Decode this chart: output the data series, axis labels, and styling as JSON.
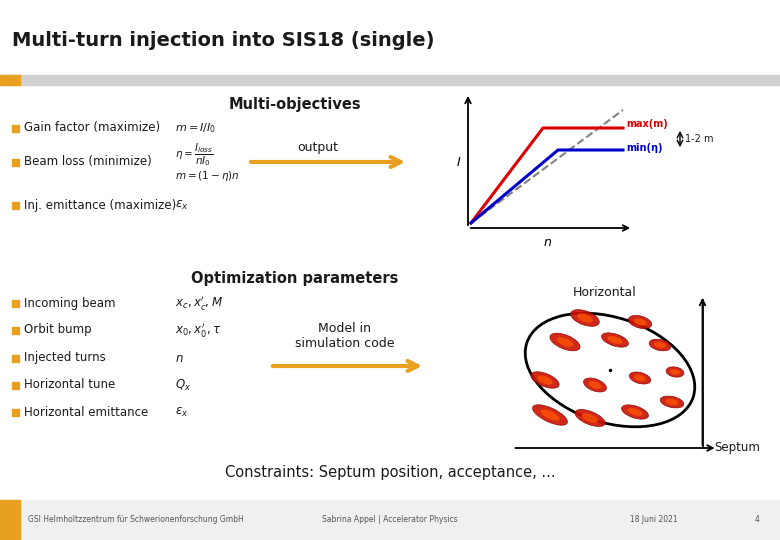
{
  "title": "Multi-turn injection into SIS18 (single)",
  "bg_color": "#ffffff",
  "gray_band_color": "#d0d0d0",
  "orange_accent_color": "#e8a020",
  "title_color": "#1a1a1a",
  "title_fontsize": 14,
  "section1_title": "Multi-objectives",
  "section2_title": "Optimization parameters",
  "constraints_text": "Constraints: Septum position, acceptance, ...",
  "bullet_color": "#e8a020",
  "bullet_items_top": [
    "Gain factor (maximize)",
    "Beam loss (minimize)",
    "Inj. emittance (maximize)"
  ],
  "bullet_items_bottom": [
    "Incoming beam",
    "Orbit bump",
    "Injected turns",
    "Horizontal tune",
    "Horizontal emittance"
  ],
  "output_label": "output",
  "model_label": "Model in\nsimulation code",
  "footer_left": "GSI Helmholtzzentrum für Schwerionenforschung GmbH",
  "footer_center": "Sabrina Appel | Accelerator Physics",
  "footer_right": "18 Juni 2021",
  "footer_page": "4",
  "footer_color": "#555555",
  "graph_label_max": "max(m)",
  "graph_label_min": "min(η)",
  "graph_range_label": "1-2 m",
  "graph_x_label": "n",
  "graph_y_label": "I",
  "horizontal_label": "Horizontal",
  "septum_label": "Septum",
  "red_line_color": "#dd0000",
  "blue_line_color": "#0000cc"
}
